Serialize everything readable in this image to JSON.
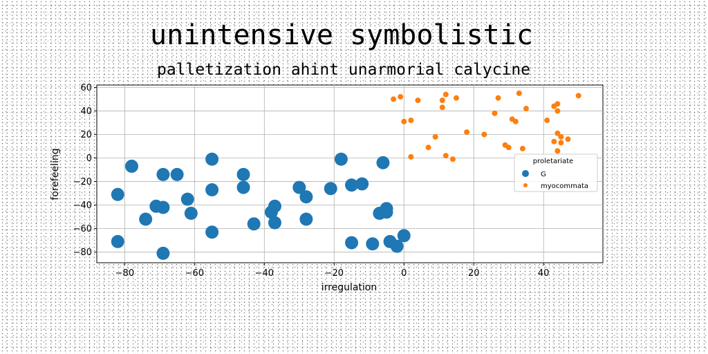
{
  "chart_data": {
    "type": "scatter",
    "title": "unintensive symbolistic",
    "subtitle": "palletization ahint unarmorial calycine",
    "xlabel": "irregulation",
    "ylabel": "forefeeling",
    "xlim": [
      -88,
      57
    ],
    "ylim": [
      -89,
      62
    ],
    "xticks": [
      -80,
      -60,
      -40,
      -20,
      0,
      20,
      40
    ],
    "yticks": [
      -80,
      -60,
      -40,
      -20,
      0,
      20,
      40,
      60
    ],
    "grid": true,
    "legend": {
      "title": "proletariate",
      "position": "right"
    },
    "series": [
      {
        "name": "G",
        "color": "#1f77b4",
        "marker_size": "large",
        "points": [
          [
            -78,
            -7
          ],
          [
            -82,
            -31
          ],
          [
            -82,
            -71
          ],
          [
            -74,
            -52
          ],
          [
            -71,
            -41
          ],
          [
            -69,
            -42
          ],
          [
            -69,
            -14
          ],
          [
            -65,
            -14
          ],
          [
            -69,
            -81
          ],
          [
            -62,
            -35
          ],
          [
            -61,
            -47
          ],
          [
            -55,
            -1
          ],
          [
            -55,
            -27
          ],
          [
            -55,
            -63
          ],
          [
            -46,
            -14
          ],
          [
            -46,
            -25
          ],
          [
            -43,
            -56
          ],
          [
            -38,
            -46
          ],
          [
            -37,
            -41
          ],
          [
            -37,
            -55
          ],
          [
            -30,
            -25
          ],
          [
            -28,
            -33
          ],
          [
            -28,
            -52
          ],
          [
            -21,
            -26
          ],
          [
            -18,
            -1
          ],
          [
            -15,
            -23
          ],
          [
            -12,
            -22
          ],
          [
            -15,
            -72
          ],
          [
            -9,
            -73
          ],
          [
            -6,
            -4
          ],
          [
            -7,
            -47
          ],
          [
            -5,
            -43
          ],
          [
            -5,
            -46
          ],
          [
            -4,
            -71
          ],
          [
            -2,
            -75
          ],
          [
            0,
            -66
          ]
        ]
      },
      {
        "name": "myocommata",
        "color": "#ff7f0e",
        "marker_size": "small",
        "points": [
          [
            -3,
            50
          ],
          [
            -1,
            52
          ],
          [
            4,
            49
          ],
          [
            11,
            49
          ],
          [
            11,
            43
          ],
          [
            12,
            54
          ],
          [
            15,
            51
          ],
          [
            0,
            31
          ],
          [
            2,
            32
          ],
          [
            2,
            1
          ],
          [
            7,
            9
          ],
          [
            9,
            18
          ],
          [
            12,
            2
          ],
          [
            14,
            -1
          ],
          [
            18,
            22
          ],
          [
            23,
            20
          ],
          [
            26,
            38
          ],
          [
            27,
            51
          ],
          [
            33,
            55
          ],
          [
            35,
            42
          ],
          [
            29,
            11
          ],
          [
            30,
            9
          ],
          [
            31,
            33
          ],
          [
            32,
            31
          ],
          [
            34,
            8
          ],
          [
            41,
            32
          ],
          [
            43,
            44
          ],
          [
            44,
            46
          ],
          [
            44,
            40
          ],
          [
            44,
            21
          ],
          [
            45,
            18
          ],
          [
            43,
            14
          ],
          [
            45,
            13
          ],
          [
            47,
            16
          ],
          [
            44,
            6
          ],
          [
            50,
            53
          ]
        ]
      }
    ]
  }
}
